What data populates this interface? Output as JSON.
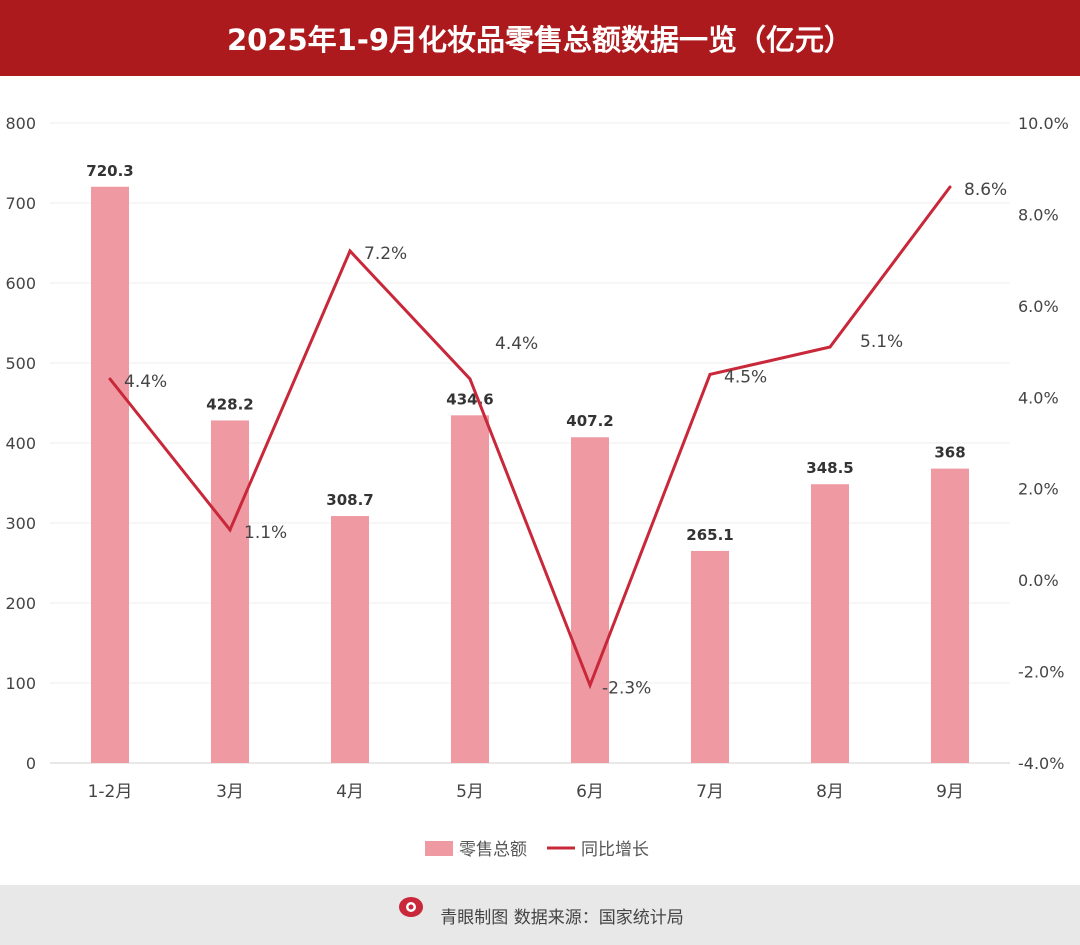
{
  "header": {
    "title": "2025年1-9月化妆品零售总额数据一览（亿元）"
  },
  "footer": {
    "logo_text": "青眼",
    "text": "青眼制图  数据来源：国家统计局"
  },
  "colors": {
    "header": "#ad1a1d",
    "bar": "#ef9aa3",
    "line": "#c8283a",
    "footer": "#e8e8e8"
  },
  "chart_data": {
    "type": "bar+line",
    "title": "2025年1-9月化妆品零售总额数据一览（亿元）",
    "categories": [
      "1-2月",
      "3月",
      "4月",
      "5月",
      "6月",
      "7月",
      "8月",
      "9月"
    ],
    "series": [
      {
        "name": "零售总额",
        "type": "bar",
        "axis": "left",
        "values": [
          720.3,
          428.2,
          308.7,
          434.6,
          407.2,
          265.1,
          348.5,
          368
        ],
        "labels": [
          "720.3",
          "428.2",
          "308.7",
          "434.6",
          "407.2",
          "265.1",
          "348.5",
          "368"
        ]
      },
      {
        "name": "同比增长",
        "type": "line",
        "axis": "right",
        "values": [
          4.4,
          1.1,
          7.2,
          4.4,
          -2.3,
          4.5,
          5.1,
          8.6
        ],
        "labels": [
          "4.4%",
          "1.1%",
          "7.2%",
          "4.4%",
          "-2.3%",
          "4.5%",
          "5.1%",
          "8.6%"
        ]
      }
    ],
    "y_left": {
      "range": [
        0,
        800
      ],
      "ticks": [
        "0",
        "100",
        "200",
        "300",
        "400",
        "500",
        "600",
        "700",
        "800"
      ]
    },
    "y_right": {
      "range": [
        -4,
        10
      ],
      "unit": "%",
      "ticks": [
        "-4.0%",
        "-2.0%",
        "0.0%",
        "2.0%",
        "4.0%",
        "6.0%",
        "8.0%",
        "10.0%"
      ]
    },
    "grid": true,
    "legend": {
      "placement": "bottom",
      "entries": [
        "零售总额",
        "同比增长"
      ]
    }
  }
}
